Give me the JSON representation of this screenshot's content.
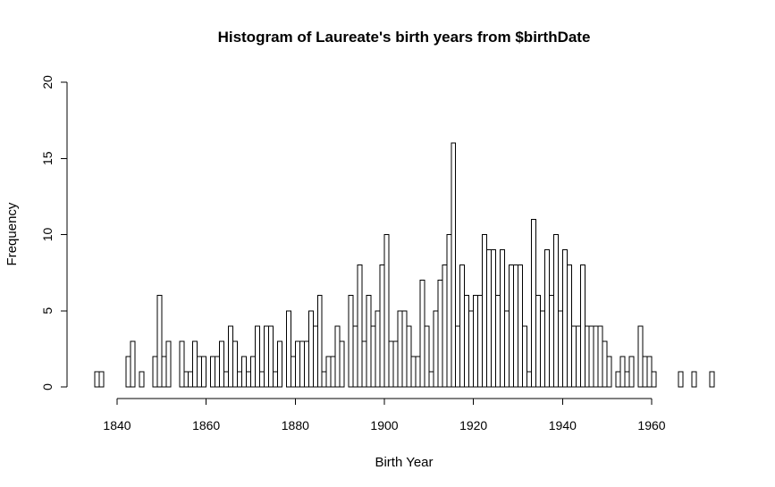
{
  "chart_data": {
    "type": "bar",
    "title": "Histogram of Laureate's birth years from $birthDate",
    "xlabel": "Birth Year",
    "ylabel": "Frequency",
    "xlim": [
      1840,
      1960
    ],
    "ylim": [
      0,
      20
    ],
    "x_ticks": [
      1840,
      1860,
      1880,
      1900,
      1920,
      1940,
      1960
    ],
    "y_ticks": [
      0,
      5,
      10,
      15,
      20
    ],
    "bin_width": 1,
    "bins_start": [
      1835,
      1836,
      1837,
      1838,
      1839,
      1840,
      1841,
      1842,
      1843,
      1844,
      1845,
      1846,
      1847,
      1848,
      1849,
      1850,
      1851,
      1852,
      1853,
      1854,
      1855,
      1856,
      1857,
      1858,
      1859,
      1860,
      1861,
      1862,
      1863,
      1864,
      1865,
      1866,
      1867,
      1868,
      1869,
      1870,
      1871,
      1872,
      1873,
      1874,
      1875,
      1876,
      1877,
      1878,
      1879,
      1880,
      1881,
      1882,
      1883,
      1884,
      1885,
      1886,
      1887,
      1888,
      1889,
      1890,
      1891,
      1892,
      1893,
      1894,
      1895,
      1896,
      1897,
      1898,
      1899,
      1900,
      1901,
      1902,
      1903,
      1904,
      1905,
      1906,
      1907,
      1908,
      1909,
      1910,
      1911,
      1912,
      1913,
      1914,
      1915,
      1916,
      1917,
      1918,
      1919,
      1920,
      1921,
      1922,
      1923,
      1924,
      1925,
      1926,
      1927,
      1928,
      1929,
      1930,
      1931,
      1932,
      1933,
      1934,
      1935,
      1936,
      1937,
      1938,
      1939,
      1940,
      1941,
      1942,
      1943,
      1944,
      1945,
      1946,
      1947,
      1948,
      1949,
      1950,
      1951,
      1952,
      1953,
      1954,
      1955,
      1956,
      1957,
      1958,
      1959,
      1960,
      1961,
      1962,
      1963,
      1964,
      1965,
      1966,
      1967,
      1968,
      1969,
      1970,
      1971,
      1972,
      1973
    ],
    "values": [
      1,
      1,
      0,
      0,
      0,
      0,
      0,
      2,
      3,
      0,
      1,
      0,
      0,
      2,
      6,
      2,
      3,
      0,
      0,
      3,
      1,
      1,
      3,
      2,
      2,
      0,
      2,
      2,
      3,
      1,
      4,
      3,
      1,
      2,
      1,
      2,
      4,
      1,
      4,
      4,
      1,
      3,
      0,
      5,
      2,
      3,
      3,
      3,
      5,
      4,
      6,
      1,
      2,
      2,
      4,
      3,
      0,
      6,
      4,
      8,
      3,
      6,
      4,
      5,
      8,
      10,
      3,
      3,
      5,
      5,
      4,
      2,
      2,
      7,
      4,
      1,
      5,
      7,
      8,
      10,
      16,
      4,
      8,
      6,
      5,
      6,
      6,
      10,
      9,
      9,
      6,
      9,
      5,
      8,
      8,
      8,
      4,
      1,
      11,
      6,
      5,
      9,
      6,
      10,
      5,
      9,
      8,
      4,
      4,
      8,
      4,
      4,
      4,
      4,
      3,
      2,
      0,
      1,
      2,
      1,
      2,
      0,
      4,
      2,
      2,
      1,
      0,
      0,
      0,
      0,
      0,
      1,
      0,
      0,
      1,
      0,
      0,
      0,
      1
    ]
  }
}
